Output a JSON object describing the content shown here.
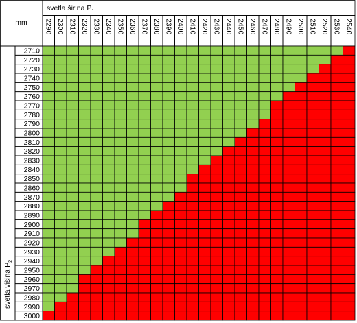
{
  "table": {
    "corner": "mm",
    "column_title": "svetla širina P",
    "column_title_sub": "1",
    "row_title": "svetla višina P",
    "row_title_sub": "2",
    "colors": {
      "ok": "#92d050",
      "over": "#ff0000"
    },
    "columns": [
      2290,
      2300,
      2310,
      2320,
      2330,
      2340,
      2350,
      2360,
      2370,
      2380,
      2390,
      2400,
      2410,
      2420,
      2430,
      2440,
      2450,
      2460,
      2470,
      2480,
      2490,
      2500,
      2510,
      2520,
      2530,
      2540
    ],
    "rows": [
      {
        "label": 2710,
        "red_from": 2540
      },
      {
        "label": 2720,
        "red_from": 2530
      },
      {
        "label": 2730,
        "red_from": 2520
      },
      {
        "label": 2740,
        "red_from": 2510
      },
      {
        "label": 2750,
        "red_from": 2500
      },
      {
        "label": 2760,
        "red_from": 2490
      },
      {
        "label": 2770,
        "red_from": 2480
      },
      {
        "label": 2780,
        "red_from": 2480
      },
      {
        "label": 2790,
        "red_from": 2470
      },
      {
        "label": 2800,
        "red_from": 2460
      },
      {
        "label": 2810,
        "red_from": 2450
      },
      {
        "label": 2820,
        "red_from": 2440
      },
      {
        "label": 2830,
        "red_from": 2430
      },
      {
        "label": 2840,
        "red_from": 2420
      },
      {
        "label": 2850,
        "red_from": 2410
      },
      {
        "label": 2860,
        "red_from": 2410
      },
      {
        "label": 2870,
        "red_from": 2400
      },
      {
        "label": 2880,
        "red_from": 2390
      },
      {
        "label": 2890,
        "red_from": 2380
      },
      {
        "label": 2900,
        "red_from": 2370
      },
      {
        "label": 2910,
        "red_from": 2370
      },
      {
        "label": 2920,
        "red_from": 2360
      },
      {
        "label": 2930,
        "red_from": 2350
      },
      {
        "label": 2940,
        "red_from": 2340
      },
      {
        "label": 2950,
        "red_from": 2330
      },
      {
        "label": 2960,
        "red_from": 2320
      },
      {
        "label": 2970,
        "red_from": 2320
      },
      {
        "label": 2980,
        "red_from": 2310
      },
      {
        "label": 2990,
        "red_from": 2300
      },
      {
        "label": 3000,
        "red_from": 2290
      }
    ]
  }
}
